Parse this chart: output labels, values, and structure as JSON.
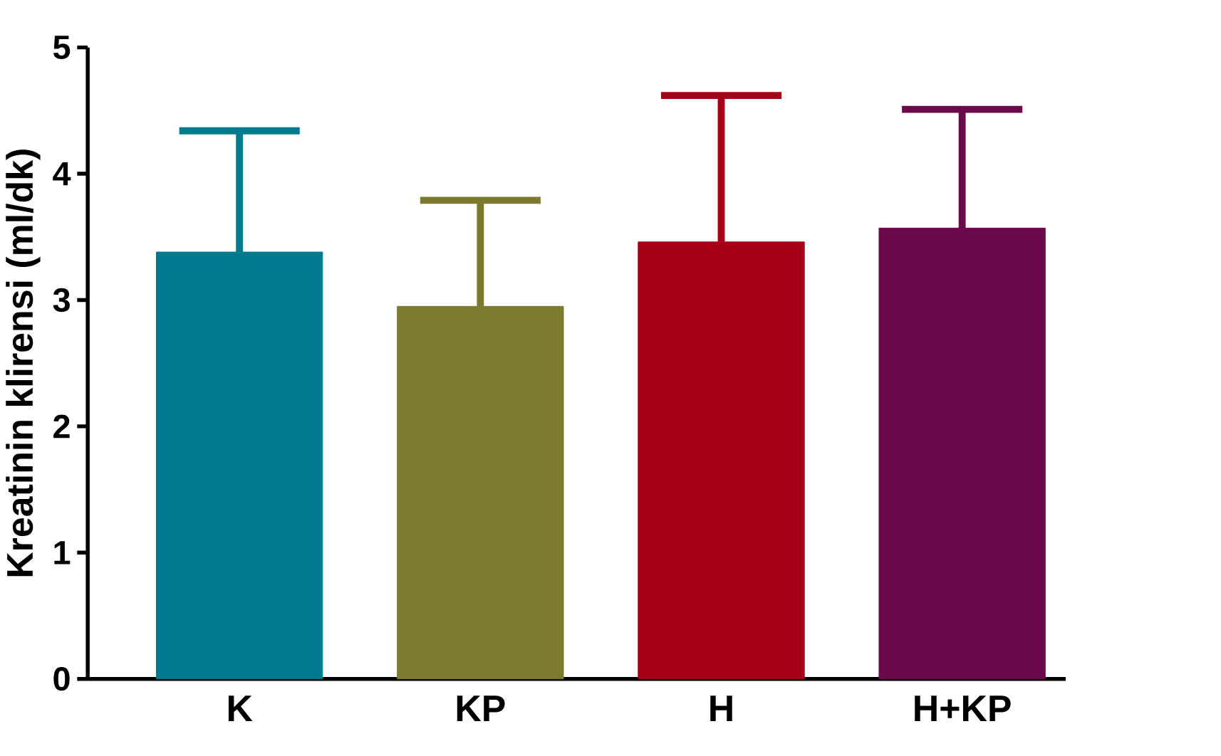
{
  "chart_data": {
    "type": "bar",
    "ylabel": "Kreatinin klirensi (ml/dk)",
    "categories": [
      "K",
      "KP",
      "H",
      "H+KP"
    ],
    "values": [
      3.38,
      2.95,
      3.46,
      3.57
    ],
    "colors": [
      "#007a8c",
      "#7d7a30",
      "#a50016",
      "#6a0a4a"
    ],
    "errors": [
      [
        3.38,
        4.34
      ],
      [
        2.95,
        3.79
      ],
      [
        3.46,
        4.62
      ],
      [
        3.57,
        4.51
      ]
    ],
    "ylim": [
      0,
      5
    ],
    "yticks": [
      0,
      1,
      2,
      3,
      4,
      5
    ]
  }
}
